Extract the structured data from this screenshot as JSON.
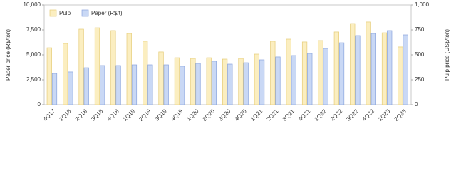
{
  "chart_data": {
    "type": "bar",
    "categories": [
      "4Q17",
      "1Q18",
      "2Q18",
      "3Q18",
      "4Q18",
      "1Q19",
      "2Q19",
      "3Q19",
      "4Q19",
      "1Q20",
      "2Q20",
      "3Q20",
      "4Q20",
      "1Q21",
      "2Q21",
      "3Q21",
      "4Q21",
      "1Q22",
      "2Q22",
      "3Q22",
      "4Q22",
      "1Q23",
      "2Q23"
    ],
    "series": [
      {
        "name": "Pulp",
        "color": "#fbeec0",
        "axis": "y2",
        "values": [
          571,
          614,
          757,
          771,
          743,
          714,
          636,
          529,
          471,
          464,
          471,
          457,
          464,
          507,
          636,
          657,
          629,
          643,
          729,
          814,
          829,
          721,
          579
        ]
      },
      {
        "name": "Paper (R$/t)",
        "color": "#c9d8f5",
        "values": [
          3140,
          3290,
          3710,
          3930,
          3930,
          4000,
          4000,
          4000,
          3860,
          4140,
          4360,
          4070,
          4210,
          4500,
          4790,
          4930,
          5140,
          5640,
          6210,
          6930,
          7140,
          7430,
          7000
        ]
      }
    ],
    "ylabel": "Paper price (R$/ton)",
    "y2label": "Pulp price (US$/ton)",
    "ylim": [
      0,
      10000
    ],
    "yticks": [
      0,
      {
        "value": 2500,
        "label": "2,500"
      },
      {
        "value": 5000,
        "label": "5,000"
      },
      {
        "value": 7500,
        "label": "7,500"
      },
      {
        "value": 10000,
        "label": "10,000"
      }
    ],
    "y2lim": [
      0,
      1000
    ],
    "y2ticks": [
      0,
      250,
      500,
      750,
      {
        "value": 1000,
        "label": "1,000"
      }
    ],
    "legend": "upper left"
  }
}
